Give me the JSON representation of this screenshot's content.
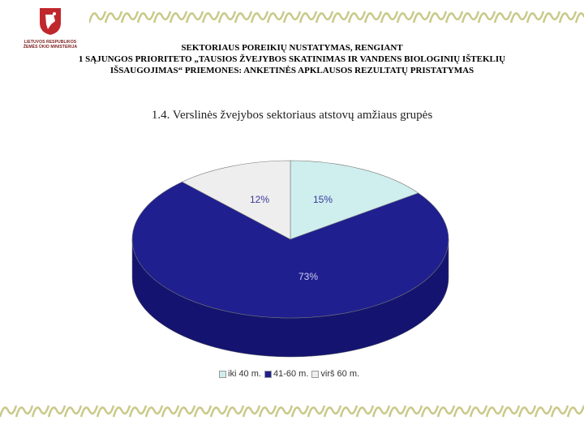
{
  "logo": {
    "icon": "coat-of-arms-icon",
    "line1": "LIETUVOS RESPUBLIKOS",
    "line2": "ŽEMĖS ŪKIO MINISTERIJA",
    "color": "#c0272d"
  },
  "header": {
    "line1": "SEKTORIAUS POREIKIŲ NUSTATYMAS, RENGIANT",
    "line2": "1 SĄJUNGOS PRIORITETO „TAUSIOS ŽVEJYBOS SKATINIMAS IR VANDENS BIOLOGINIŲ IŠTEKLIŲ",
    "line3": "IŠSAUGOJIMAS“ PRIEMONES: ANKETINĖS APKLAUSOS REZULTATŲ PRISTATYMAS"
  },
  "chart_data": {
    "type": "pie",
    "title": "1.4. Verslinės žvejybos sektoriaus atstovų amžiaus grupės",
    "categories": [
      "iki 40 m.",
      "41-60 m.",
      "virš 60 m."
    ],
    "legend_labels": [
      "iki 40 m.",
      "41-60 m.",
      "virš 60 m."
    ],
    "values": [
      15,
      73,
      12
    ],
    "data_labels": [
      "15%",
      "73%",
      "12%"
    ],
    "colors": [
      "#cfeeee",
      "#1f1f8f",
      "#eeeeee"
    ],
    "side_colors": [
      "#a8cfcf",
      "#141470",
      "#c8c8c8"
    ],
    "legend_position": "bottom"
  },
  "decor": {
    "border_color": "#c9c98a"
  }
}
